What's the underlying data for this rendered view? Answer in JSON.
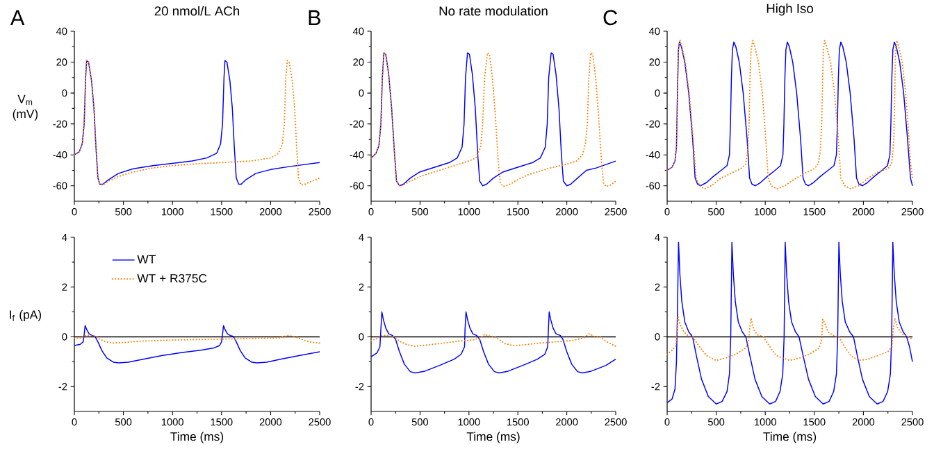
{
  "chart_data": [
    {
      "type": "line",
      "title": "20 nmol/L ACh",
      "annotations": [
        "A"
      ],
      "ylabel": "V$_{m}$ (mV)",
      "xlim": [
        0,
        2500
      ],
      "ylim": [
        -70,
        40
      ],
      "xticks": [
        0,
        500,
        1000,
        1500,
        2000,
        2500
      ],
      "yticks": [
        -60,
        -40,
        -20,
        0,
        20,
        40
      ],
      "series": [
        {
          "color": "#0000ff",
          "x": [
            0,
            50,
            80,
            100,
            115,
            125,
            145,
            175,
            200,
            220,
            240,
            260,
            290,
            350,
            450,
            600,
            800,
            1000,
            1200,
            1350,
            1450,
            1490,
            1510,
            1525,
            1535,
            1555,
            1585,
            1610,
            1630,
            1650,
            1675,
            1700,
            1750,
            1850,
            2000,
            2200,
            2500
          ],
          "values": [
            -40,
            -38,
            -33,
            -20,
            10,
            21,
            20,
            8,
            -10,
            -35,
            -55,
            -59,
            -59,
            -56,
            -52,
            -49,
            -47,
            -45.5,
            -44,
            -42,
            -39,
            -33,
            -20,
            10,
            21,
            20,
            8,
            -10,
            -35,
            -55,
            -59,
            -59,
            -56,
            -52,
            -49.5,
            -47.5,
            -45
          ]
        },
        {
          "color": "#ff8000",
          "line_style": "dotted",
          "x": [
            0,
            50,
            80,
            100,
            115,
            125,
            145,
            175,
            200,
            220,
            240,
            260,
            290,
            350,
            450,
            600,
            800,
            1000,
            1200,
            1500,
            1800,
            2000,
            2080,
            2120,
            2140,
            2155,
            2170,
            2190,
            2220,
            2245,
            2265,
            2285,
            2310,
            2350,
            2420,
            2500
          ],
          "values": [
            -40,
            -38,
            -33,
            -20,
            10,
            21,
            20,
            8,
            -10,
            -35,
            -55,
            -59,
            -59.5,
            -57,
            -54,
            -51,
            -48.5,
            -47,
            -46,
            -45,
            -44,
            -42,
            -39,
            -33,
            -20,
            10,
            21,
            20,
            8,
            -10,
            -35,
            -55,
            -59.5,
            -59,
            -57,
            -55
          ]
        }
      ]
    },
    {
      "type": "line",
      "title": "No rate modulation",
      "annotations": [
        "B"
      ],
      "xlim": [
        0,
        2500
      ],
      "ylim": [
        -70,
        40
      ],
      "xticks": [
        0,
        500,
        1000,
        1500,
        2000,
        2500
      ],
      "yticks": [
        -60,
        -40,
        -20,
        0,
        20,
        40
      ],
      "series": [
        {
          "color": "#0000ff",
          "x": [
            0,
            50,
            80,
            100,
            115,
            130,
            150,
            180,
            210,
            240,
            260,
            290,
            330,
            400,
            500,
            650,
            800,
            880,
            930,
            950,
            965,
            985,
            1005,
            1035,
            1065,
            1090,
            1110,
            1140,
            1180,
            1250,
            1350,
            1500,
            1650,
            1730,
            1780,
            1800,
            1815,
            1840,
            1860,
            1890,
            1920,
            1945,
            1965,
            2000,
            2040,
            2110,
            2200,
            2300,
            2500
          ],
          "values": [
            -42,
            -39,
            -34,
            -20,
            10,
            26,
            25,
            12,
            -10,
            -40,
            -57,
            -60,
            -59,
            -55,
            -51,
            -48,
            -45,
            -42,
            -35,
            -20,
            10,
            26,
            25,
            12,
            -10,
            -40,
            -57,
            -60,
            -59,
            -55,
            -51,
            -48,
            -45,
            -42,
            -35,
            -20,
            10,
            26,
            25,
            12,
            -10,
            -40,
            -57,
            -60,
            -59,
            -55,
            -50,
            -48.5,
            -44
          ]
        },
        {
          "color": "#ff8000",
          "line_style": "dotted",
          "x": [
            0,
            50,
            80,
            100,
            115,
            130,
            150,
            180,
            210,
            240,
            260,
            300,
            400,
            500,
            700,
            900,
            1000,
            1070,
            1120,
            1140,
            1160,
            1190,
            1210,
            1240,
            1270,
            1300,
            1320,
            1350,
            1420,
            1500,
            1600,
            1800,
            2000,
            2100,
            2160,
            2190,
            2210,
            2225,
            2245,
            2265,
            2295,
            2325,
            2355,
            2375,
            2400,
            2450,
            2500
          ],
          "values": [
            -42,
            -39,
            -34,
            -20,
            10,
            26,
            25,
            12,
            -10,
            -40,
            -57,
            -60.5,
            -57,
            -54,
            -50,
            -46,
            -44,
            -42,
            -35,
            -20,
            10,
            26,
            25,
            10,
            -15,
            -45,
            -58,
            -60.5,
            -59,
            -56,
            -53,
            -49,
            -46,
            -44,
            -40,
            -33,
            -20,
            10,
            26,
            25,
            10,
            -15,
            -45,
            -58,
            -60.5,
            -59.5,
            -57
          ]
        }
      ]
    },
    {
      "type": "line",
      "title": "High Iso",
      "annotations": [
        "C"
      ],
      "xlim": [
        0,
        2500
      ],
      "ylim": [
        -70,
        40
      ],
      "xticks": [
        0,
        500,
        1000,
        1500,
        2000,
        2500
      ],
      "yticks": [
        -60,
        -40,
        -20,
        0,
        20,
        40
      ],
      "series": [
        {
          "color": "#0000ff",
          "x": [
            0,
            50,
            80,
            95,
            105,
            115,
            125,
            145,
            180,
            220,
            260,
            285,
            310,
            340,
            400,
            470,
            550,
            610,
            635,
            645,
            655,
            665,
            680,
            700,
            735,
            775,
            815,
            840,
            865,
            900,
            950,
            1020,
            1100,
            1155,
            1180,
            1190,
            1200,
            1210,
            1225,
            1245,
            1280,
            1320,
            1360,
            1385,
            1410,
            1440,
            1490,
            1560,
            1640,
            1700,
            1725,
            1735,
            1745,
            1755,
            1770,
            1790,
            1825,
            1865,
            1905,
            1930,
            1955,
            1990,
            2040,
            2110,
            2190,
            2245,
            2270,
            2280,
            2290,
            2300,
            2315,
            2335,
            2370,
            2410,
            2450,
            2480,
            2500
          ],
          "values": [
            -50,
            -48,
            -44,
            -35,
            0,
            28,
            33,
            30,
            20,
            0,
            -30,
            -55,
            -59,
            -60,
            -58,
            -54,
            -50,
            -47,
            -40,
            -20,
            10,
            28,
            33,
            30,
            20,
            0,
            -30,
            -55,
            -59,
            -60,
            -58,
            -54,
            -50,
            -47,
            -40,
            -20,
            10,
            28,
            33,
            30,
            20,
            0,
            -30,
            -55,
            -59,
            -60,
            -58,
            -54,
            -50,
            -47,
            -40,
            -20,
            10,
            28,
            33,
            30,
            20,
            0,
            -30,
            -55,
            -59,
            -60,
            -58,
            -54,
            -50,
            -47,
            -40,
            -20,
            10,
            28,
            33,
            30,
            20,
            0,
            -30,
            -55,
            -60
          ]
        },
        {
          "color": "#ff8000",
          "line_style": "dotted",
          "x": [
            0,
            50,
            80,
            95,
            105,
            115,
            132,
            150,
            185,
            225,
            265,
            295,
            330,
            380,
            450,
            550,
            650,
            750,
            800,
            820,
            835,
            845,
            855,
            873,
            893,
            930,
            970,
            1005,
            1030,
            1060,
            1120,
            1200,
            1290,
            1400,
            1500,
            1540,
            1560,
            1575,
            1585,
            1592,
            1605,
            1625,
            1665,
            1705,
            1745,
            1770,
            1810,
            1870,
            1950,
            2050,
            2150,
            2250,
            2290,
            2310,
            2320,
            2327,
            2340,
            2360,
            2395,
            2430,
            2460,
            2480,
            2500
          ],
          "values": [
            -50,
            -48,
            -44,
            -35,
            0,
            28,
            34,
            30,
            20,
            0,
            -30,
            -55,
            -60,
            -62,
            -60,
            -55,
            -52,
            -49,
            -46,
            -38,
            -20,
            10,
            28,
            34,
            30,
            20,
            0,
            -30,
            -55,
            -60,
            -62,
            -60,
            -56,
            -52,
            -49,
            -46,
            -38,
            -20,
            10,
            28,
            34,
            30,
            20,
            0,
            -30,
            -55,
            -60,
            -62,
            -60,
            -55,
            -51,
            -49,
            -45,
            -30,
            0,
            28,
            34,
            30,
            20,
            0,
            -25,
            -45,
            -55
          ]
        }
      ]
    },
    {
      "type": "line",
      "xlabel": "Time (ms)",
      "ylabel": "I$_{f}$ (pA)",
      "xlim": [
        0,
        2500
      ],
      "ylim": [
        -3,
        4
      ],
      "xticks": [
        0,
        500,
        1000,
        1500,
        2000,
        2500
      ],
      "yticks": [
        -2,
        0,
        2,
        4
      ],
      "legend": "top left",
      "ref_lines": [
        {
          "axis": "y",
          "value": 0,
          "color": "#000000"
        }
      ],
      "series": [
        {
          "name": "WT",
          "color": "#0000ff",
          "x": [
            0,
            60,
            90,
            100,
            110,
            125,
            150,
            180,
            210,
            240,
            280,
            330,
            400,
            450,
            550,
            700,
            900,
            1100,
            1300,
            1420,
            1480,
            1500,
            1510,
            1520,
            1535,
            1560,
            1590,
            1620,
            1650,
            1690,
            1740,
            1810,
            1860,
            1960,
            2100,
            2300,
            2500
          ],
          "values": [
            -0.35,
            -0.3,
            -0.2,
            0.1,
            0.45,
            0.3,
            0.12,
            0.05,
            0.02,
            -0.2,
            -0.55,
            -0.85,
            -1.02,
            -1.05,
            -1.02,
            -0.9,
            -0.75,
            -0.63,
            -0.53,
            -0.45,
            -0.35,
            -0.2,
            0.1,
            0.45,
            0.3,
            0.12,
            0.05,
            0.02,
            -0.2,
            -0.55,
            -0.85,
            -1.02,
            -1.05,
            -1.02,
            -0.9,
            -0.75,
            -0.6
          ]
        },
        {
          "name": "WT + R375C",
          "color": "#ff8000",
          "line_style": "dotted",
          "x": [
            0,
            80,
            110,
            150,
            210,
            260,
            320,
            400,
            500,
            700,
            1000,
            1400,
            1800,
            2100,
            2170,
            2230,
            2280,
            2350,
            2420,
            2500
          ],
          "values": [
            -0.05,
            -0.05,
            0.05,
            0.05,
            0.02,
            -0.1,
            -0.2,
            -0.25,
            -0.23,
            -0.17,
            -0.13,
            -0.1,
            -0.07,
            -0.04,
            0.05,
            0.02,
            -0.05,
            -0.15,
            -0.22,
            -0.25
          ]
        }
      ]
    },
    {
      "type": "line",
      "xlabel": "Time (ms)",
      "xlim": [
        0,
        2500
      ],
      "ylim": [
        -3,
        4
      ],
      "xticks": [
        0,
        500,
        1000,
        1500,
        2000,
        2500
      ],
      "yticks": [
        -2,
        0,
        2,
        4
      ],
      "ref_lines": [
        {
          "axis": "y",
          "value": 0,
          "color": "#000000"
        }
      ],
      "series": [
        {
          "color": "#0000ff",
          "x": [
            0,
            60,
            90,
            100,
            110,
            125,
            150,
            180,
            220,
            250,
            290,
            340,
            400,
            450,
            550,
            700,
            850,
            920,
            955,
            960,
            970,
            985,
            1010,
            1040,
            1080,
            1110,
            1150,
            1200,
            1260,
            1310,
            1400,
            1550,
            1700,
            1775,
            1805,
            1812,
            1820,
            1835,
            1860,
            1890,
            1935,
            1960,
            2000,
            2050,
            2110,
            2160,
            2250,
            2400,
            2500
          ],
          "values": [
            -0.8,
            -0.65,
            -0.4,
            0.3,
            1.0,
            0.7,
            0.35,
            0.12,
            0.05,
            -0.1,
            -0.6,
            -1.1,
            -1.4,
            -1.45,
            -1.38,
            -1.15,
            -0.9,
            -0.7,
            -0.4,
            0.3,
            1.0,
            0.7,
            0.35,
            0.12,
            0.05,
            -0.1,
            -0.6,
            -1.1,
            -1.4,
            -1.45,
            -1.38,
            -1.15,
            -0.9,
            -0.7,
            -0.4,
            0.3,
            1.0,
            0.7,
            0.35,
            0.12,
            0.05,
            -0.1,
            -0.6,
            -1.1,
            -1.4,
            -1.45,
            -1.38,
            -1.15,
            -0.9
          ]
        },
        {
          "color": "#ff8000",
          "line_style": "dotted",
          "x": [
            0,
            80,
            110,
            170,
            230,
            300,
            370,
            450,
            550,
            700,
            900,
            1050,
            1120,
            1160,
            1210,
            1260,
            1310,
            1370,
            1450,
            1550,
            1700,
            1900,
            2050,
            2170,
            2230,
            2280,
            2340,
            2400,
            2500
          ],
          "values": [
            -0.15,
            -0.05,
            0.05,
            0.05,
            0,
            -0.2,
            -0.32,
            -0.38,
            -0.34,
            -0.27,
            -0.17,
            -0.12,
            -0.05,
            0.1,
            0.03,
            0,
            -0.12,
            -0.28,
            -0.35,
            -0.33,
            -0.26,
            -0.2,
            -0.15,
            -0.05,
            0.12,
            0.02,
            0,
            -0.18,
            -0.38
          ]
        }
      ]
    },
    {
      "type": "line",
      "xlabel": "Time (ms)",
      "xlim": [
        0,
        2500
      ],
      "ylim": [
        -3,
        4
      ],
      "xticks": [
        0,
        500,
        1000,
        1500,
        2000,
        2500
      ],
      "yticks": [
        -2,
        0,
        2,
        4
      ],
      "ref_lines": [
        {
          "axis": "y",
          "value": 0,
          "color": "#000000"
        }
      ],
      "series": [
        {
          "color": "#0000ff",
          "x": [
            0,
            50,
            80,
            95,
            105,
            116,
            130,
            150,
            180,
            220,
            259,
            300,
            350,
            420,
            500,
            560,
            610,
            635,
            648,
            660,
            675,
            695,
            725,
            765,
            802,
            845,
            895,
            965,
            1045,
            1105,
            1150,
            1178,
            1192,
            1203,
            1218,
            1238,
            1268,
            1308,
            1344,
            1388,
            1440,
            1510,
            1590,
            1650,
            1697,
            1725,
            1738,
            1750,
            1765,
            1785,
            1815,
            1860,
            1899,
            1940,
            1990,
            2060,
            2140,
            2200,
            2247,
            2275,
            2288,
            2300,
            2315,
            2335,
            2365,
            2405,
            2441,
            2470,
            2500
          ],
          "values": [
            -2.65,
            -2.5,
            -2.1,
            -1.0,
            1.0,
            3.8,
            2.5,
            1.4,
            0.6,
            0.2,
            0,
            -0.8,
            -1.7,
            -2.4,
            -2.7,
            -2.6,
            -2.2,
            -1.5,
            0,
            3.8,
            2.5,
            1.4,
            0.6,
            0.2,
            0,
            -0.8,
            -1.7,
            -2.4,
            -2.7,
            -2.6,
            -2.2,
            -1.5,
            0,
            3.8,
            2.5,
            1.4,
            0.6,
            0.2,
            0,
            -0.8,
            -1.7,
            -2.4,
            -2.7,
            -2.6,
            -2.2,
            -1.5,
            0,
            3.8,
            2.5,
            1.4,
            0.6,
            0.2,
            0,
            -0.8,
            -1.7,
            -2.4,
            -2.7,
            -2.6,
            -2.2,
            -1.5,
            0,
            3.8,
            2.5,
            1.4,
            0.6,
            0.2,
            0,
            -0.4,
            -1.0
          ]
        },
        {
          "color": "#ff8000",
          "line_style": "dotted",
          "x": [
            0,
            50,
            90,
            100,
            110,
            130,
            170,
            210,
            260,
            320,
            400,
            500,
            600,
            700,
            800,
            830,
            845,
            855,
            880,
            920,
            980,
            1030,
            1110,
            1250,
            1350,
            1450,
            1550,
            1575,
            1585,
            1600,
            1640,
            1690,
            1750,
            1800,
            1870,
            1950,
            2050,
            2150,
            2250,
            2290,
            2305,
            2320,
            2350,
            2400,
            2450,
            2500
          ],
          "values": [
            -0.7,
            -0.55,
            -0.35,
            0.3,
            0.8,
            0.5,
            0.2,
            0.05,
            0,
            -0.35,
            -0.75,
            -0.95,
            -0.85,
            -0.7,
            -0.45,
            -0.2,
            0.5,
            0.75,
            0.3,
            0.08,
            0,
            -0.3,
            -0.75,
            -0.95,
            -0.85,
            -0.7,
            -0.45,
            -0.1,
            0.7,
            0.6,
            0.2,
            0.05,
            0,
            -0.35,
            -0.75,
            -0.95,
            -0.9,
            -0.75,
            -0.6,
            -0.4,
            0.3,
            0.75,
            0.35,
            0.1,
            0,
            -0.1
          ]
        }
      ]
    }
  ]
}
